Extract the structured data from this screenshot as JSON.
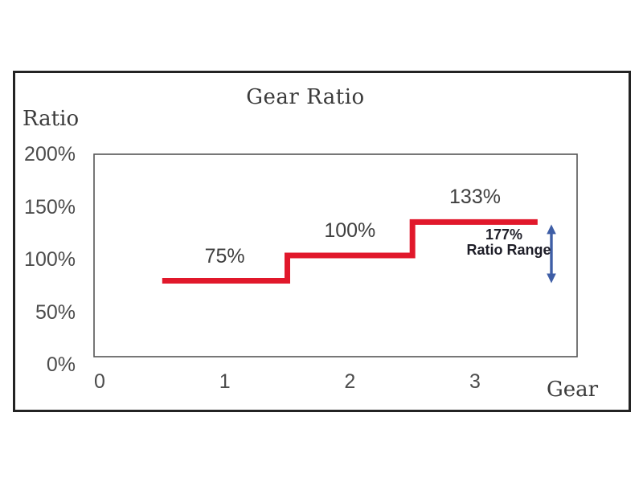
{
  "figure": {
    "title": "Gear Ratio",
    "y_axis_label": "Ratio",
    "x_axis_label": "Gear"
  },
  "chart_data": {
    "type": "line",
    "subtype": "step",
    "title": "Gear Ratio",
    "xlabel": "Gear",
    "ylabel": "Ratio",
    "grid": false,
    "legend": false,
    "xlim": [
      0,
      3.5
    ],
    "ylim_percent": [
      0,
      200
    ],
    "x_ticks": [
      0,
      1,
      2,
      3
    ],
    "x_tick_labels": [
      "0",
      "1",
      "2",
      "3"
    ],
    "y_ticks": [
      200,
      150,
      100,
      50,
      0
    ],
    "y_tick_labels": [
      "200%",
      "150%",
      "100%",
      "50%",
      "0%"
    ],
    "series": [
      {
        "name": "gear-ratio-steps",
        "steps": [
          {
            "from_gear": 0.5,
            "to_gear": 1.5,
            "ratio_percent": 75,
            "label": "75%"
          },
          {
            "from_gear": 1.5,
            "to_gear": 2.5,
            "ratio_percent": 100,
            "label": "100%"
          },
          {
            "from_gear": 2.5,
            "to_gear": 3.5,
            "ratio_percent": 133,
            "label": "133%"
          }
        ]
      }
    ],
    "annotation": {
      "line1": "177%",
      "line2": "Ratio Range",
      "arrow_from_percent": 75,
      "arrow_to_percent": 133
    },
    "colors": {
      "step_line": "#e1182b",
      "arrow": "#3e5ea6",
      "tick_text": "#4c4c4c",
      "label_text": "#3b3b3b",
      "annotation_text": "#1e1e28",
      "plot_border": "#555555",
      "frame_border": "#232323"
    }
  }
}
